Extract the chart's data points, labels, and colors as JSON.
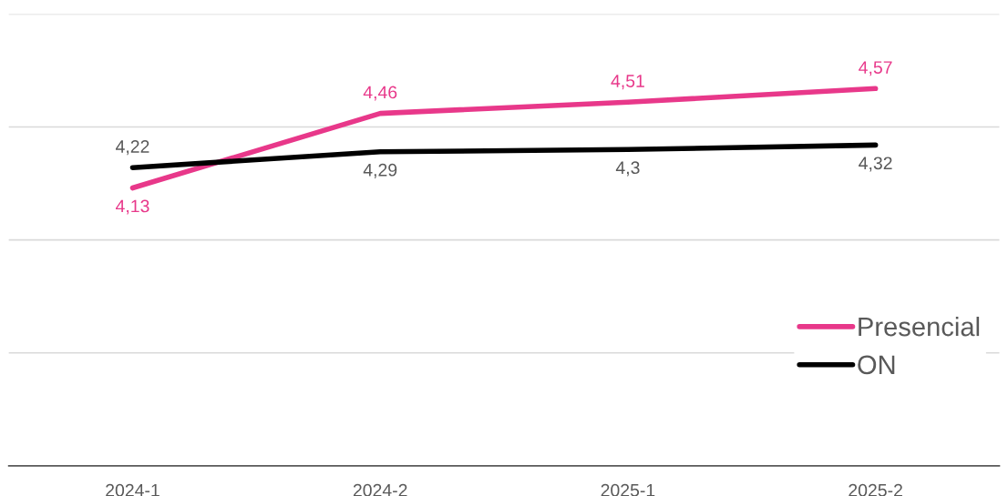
{
  "chart_data": {
    "type": "line",
    "categories": [
      "2024-1",
      "2024-2",
      "2025-1",
      "2025-2"
    ],
    "series": [
      {
        "name": "Presencial",
        "color": "#e8388a",
        "values": [
          4.13,
          4.46,
          4.51,
          4.57
        ],
        "value_labels": [
          "4,13",
          "4,46",
          "4,51",
          "4,57"
        ]
      },
      {
        "name": "ON",
        "color": "#000000",
        "values": [
          4.22,
          4.29,
          4.3,
          4.32
        ],
        "value_labels": [
          "4,22",
          "4,29",
          "4,3",
          "4,32"
        ]
      }
    ],
    "ylim": [
      2.9,
      4.9
    ],
    "yticks": [
      {
        "value": 2.9,
        "label": null
      },
      {
        "value": 3.4,
        "label": null
      },
      {
        "value": 3.9,
        "label": null
      },
      {
        "value": 4.4,
        "label": null
      },
      {
        "value": 4.9,
        "label": null
      }
    ],
    "grid": "y",
    "legend": "bottom right",
    "tick_labels": "x",
    "line_style": "solid"
  }
}
